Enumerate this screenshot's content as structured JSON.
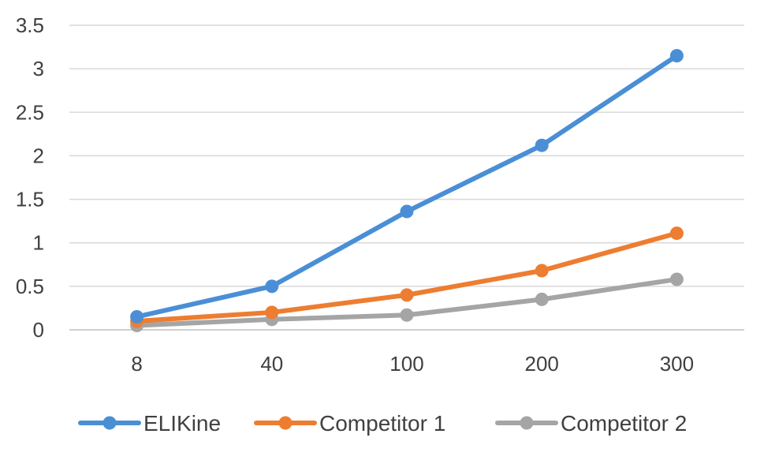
{
  "chart_data": {
    "type": "line",
    "categories": [
      "8",
      "40",
      "100",
      "200",
      "300"
    ],
    "series": [
      {
        "name": "ELIKine",
        "color": "#4a8fd6",
        "values": [
          0.15,
          0.5,
          1.36,
          2.12,
          3.15
        ]
      },
      {
        "name": "Competitor 1",
        "color": "#ed7d31",
        "values": [
          0.1,
          0.2,
          0.4,
          0.68,
          1.11
        ]
      },
      {
        "name": "Competitor 2",
        "color": "#a5a5a5",
        "values": [
          0.05,
          0.12,
          0.17,
          0.35,
          0.58
        ]
      }
    ],
    "y_ticks": [
      "0",
      "0.5",
      "1",
      "1.5",
      "2",
      "2.5",
      "3",
      "3.5"
    ],
    "ylim": [
      0,
      3.5
    ],
    "grid": true,
    "legend_position": "bottom",
    "title": "",
    "xlabel": "",
    "ylabel": ""
  }
}
